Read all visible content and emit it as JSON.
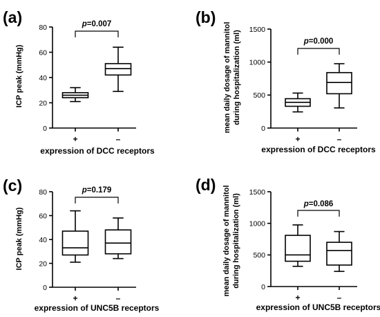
{
  "chart_data": [
    {
      "type": "box",
      "panel_label": "(a)",
      "ylabel": "ICP peak (mmHg)",
      "xlabel": "expression of DCC receptors",
      "categories": [
        "+",
        "–"
      ],
      "ylim": [
        0,
        80
      ],
      "yticks": [
        0,
        20,
        40,
        60,
        80
      ],
      "boxes": [
        {
          "min": 21,
          "q1": 24,
          "median": 26,
          "q3": 28,
          "max": 32
        },
        {
          "min": 29,
          "q1": 42,
          "median": 47,
          "q3": 51,
          "max": 64
        }
      ],
      "annotation": {
        "p_label": "p",
        "p_value": "=0.007"
      }
    },
    {
      "type": "box",
      "panel_label": "(b)",
      "ylabel": "mean daily dosage of mannitol during hospitalization (ml)",
      "ylabel_lines": [
        "mean daily dosage of mannitol",
        "during hospitalization (ml)"
      ],
      "xlabel": "expression of DCC receptors",
      "categories": [
        "+",
        "–"
      ],
      "ylim": [
        0,
        1500
      ],
      "yticks": [
        0,
        500,
        1000,
        1500
      ],
      "boxes": [
        {
          "min": 245,
          "q1": 330,
          "median": 390,
          "q3": 445,
          "max": 530
        },
        {
          "min": 305,
          "q1": 520,
          "median": 690,
          "q3": 840,
          "max": 975
        }
      ],
      "annotation": {
        "p_label": "p",
        "p_value": "=0.000"
      }
    },
    {
      "type": "box",
      "panel_label": "(c)",
      "ylabel": "ICP peak (mmHg)",
      "xlabel": "expression of UNC5B receptors",
      "categories": [
        "+",
        "–"
      ],
      "ylim": [
        0,
        80
      ],
      "yticks": [
        0,
        20,
        40,
        60,
        80
      ],
      "boxes": [
        {
          "min": 21,
          "q1": 27,
          "median": 33,
          "q3": 47,
          "max": 64
        },
        {
          "min": 24,
          "q1": 28,
          "median": 37,
          "q3": 48,
          "max": 58
        }
      ],
      "annotation": {
        "p_label": "p",
        "p_value": "=0.179"
      }
    },
    {
      "type": "box",
      "panel_label": "(d)",
      "ylabel": "mean daily dosage of mannitol during hospitalization (ml)",
      "ylabel_lines": [
        "mean daily dosage of mannitol",
        "during hospitalization (ml)"
      ],
      "xlabel": "expression of UNC5B receptors",
      "categories": [
        "+",
        "–"
      ],
      "ylim": [
        0,
        1500
      ],
      "yticks": [
        0,
        500,
        1000,
        1500
      ],
      "boxes": [
        {
          "min": 320,
          "q1": 400,
          "median": 500,
          "q3": 810,
          "max": 975
        },
        {
          "min": 240,
          "q1": 340,
          "median": 570,
          "q3": 700,
          "max": 870
        }
      ],
      "annotation": {
        "p_label": "p",
        "p_value": "=0.086"
      }
    }
  ]
}
